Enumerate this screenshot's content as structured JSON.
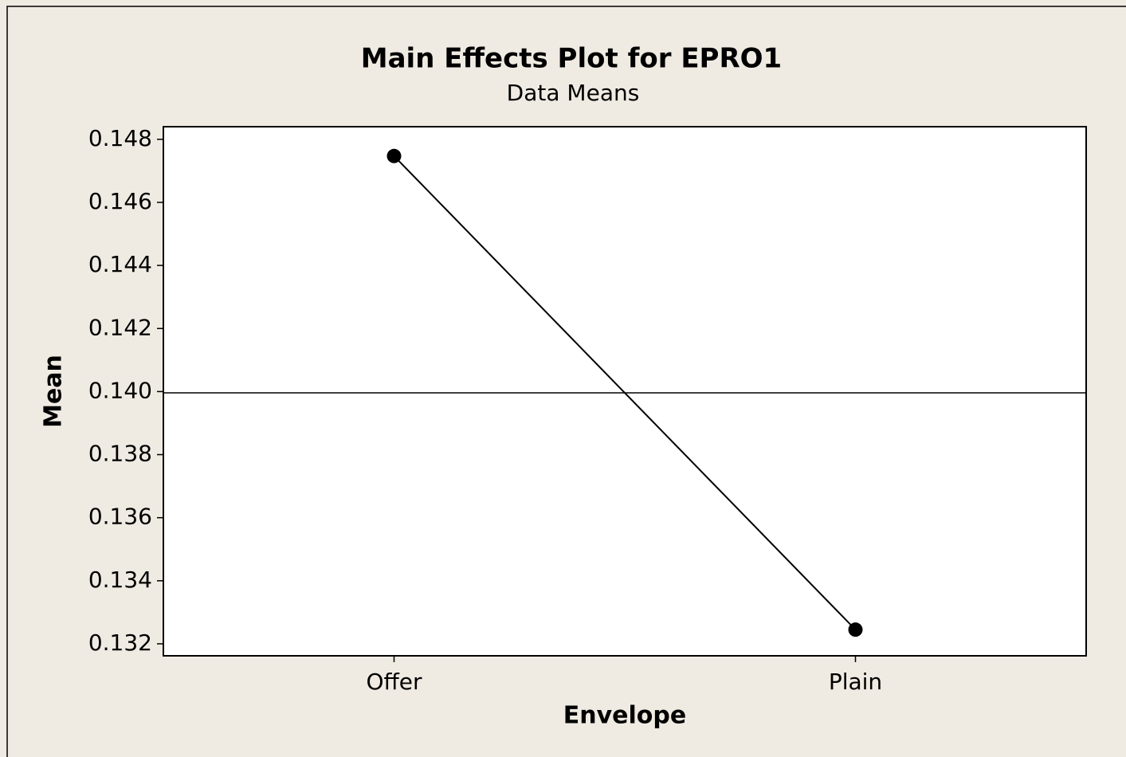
{
  "chart_data": {
    "type": "line",
    "title": "Main Effects Plot for EPRO1",
    "subtitle": "Data Means",
    "x_label": "Envelope",
    "y_label": "Mean",
    "categories": [
      "Offer",
      "Plain"
    ],
    "series": [
      {
        "name": "Mean",
        "color": "#000000",
        "values": [
          0.14747,
          0.13245
        ]
      }
    ],
    "reference_line": 0.13996,
    "ylim": [
      0.13162,
      0.1484
    ],
    "yticks": [
      {
        "value": 0.132,
        "label": "0.132"
      },
      0.134,
      0.136,
      0.138,
      {
        "value": 0.14,
        "label": "0.140"
      },
      0.142,
      0.144,
      0.146,
      0.148
    ]
  }
}
